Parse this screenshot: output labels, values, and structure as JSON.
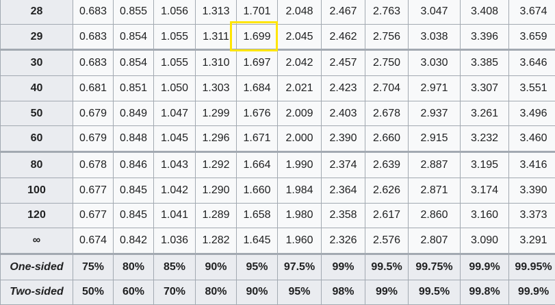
{
  "table": {
    "rows": [
      {
        "df": "28",
        "values": [
          "0.683",
          "0.855",
          "1.056",
          "1.313",
          "1.701",
          "2.048",
          "2.467",
          "2.763",
          "3.047",
          "3.408",
          "3.674"
        ]
      },
      {
        "df": "29",
        "values": [
          "0.683",
          "0.854",
          "1.055",
          "1.311",
          "1.699",
          "2.045",
          "2.462",
          "2.756",
          "3.038",
          "3.396",
          "3.659"
        ]
      },
      {
        "df": "30",
        "values": [
          "0.683",
          "0.854",
          "1.055",
          "1.310",
          "1.697",
          "2.042",
          "2.457",
          "2.750",
          "3.030",
          "3.385",
          "3.646"
        ]
      },
      {
        "df": "40",
        "values": [
          "0.681",
          "0.851",
          "1.050",
          "1.303",
          "1.684",
          "2.021",
          "2.423",
          "2.704",
          "2.971",
          "3.307",
          "3.551"
        ]
      },
      {
        "df": "50",
        "values": [
          "0.679",
          "0.849",
          "1.047",
          "1.299",
          "1.676",
          "2.009",
          "2.403",
          "2.678",
          "2.937",
          "3.261",
          "3.496"
        ]
      },
      {
        "df": "60",
        "values": [
          "0.679",
          "0.848",
          "1.045",
          "1.296",
          "1.671",
          "2.000",
          "2.390",
          "2.660",
          "2.915",
          "3.232",
          "3.460"
        ]
      },
      {
        "df": "80",
        "values": [
          "0.678",
          "0.846",
          "1.043",
          "1.292",
          "1.664",
          "1.990",
          "2.374",
          "2.639",
          "2.887",
          "3.195",
          "3.416"
        ]
      },
      {
        "df": "100",
        "values": [
          "0.677",
          "0.845",
          "1.042",
          "1.290",
          "1.660",
          "1.984",
          "2.364",
          "2.626",
          "2.871",
          "3.174",
          "3.390"
        ]
      },
      {
        "df": "120",
        "values": [
          "0.677",
          "0.845",
          "1.041",
          "1.289",
          "1.658",
          "1.980",
          "2.358",
          "2.617",
          "2.860",
          "3.160",
          "3.373"
        ]
      },
      {
        "df": "∞",
        "values": [
          "0.674",
          "0.842",
          "1.036",
          "1.282",
          "1.645",
          "1.960",
          "2.326",
          "2.576",
          "2.807",
          "3.090",
          "3.291"
        ]
      }
    ],
    "footer": [
      {
        "label": "One-sided",
        "values": [
          "75%",
          "80%",
          "85%",
          "90%",
          "95%",
          "97.5%",
          "99%",
          "99.5%",
          "99.75%",
          "99.9%",
          "99.95%"
        ]
      },
      {
        "label": "Two-sided",
        "values": [
          "50%",
          "60%",
          "70%",
          "80%",
          "90%",
          "95%",
          "98%",
          "99%",
          "99.5%",
          "99.8%",
          "99.9%"
        ]
      }
    ],
    "highlight": {
      "row_df": "29",
      "column_index": 4,
      "color": "#ffe500"
    }
  },
  "colors": {
    "border": "#a2a9b1",
    "header_bg": "#eaecf0",
    "cell_bg": "#f8f9fa",
    "text": "#202122"
  }
}
